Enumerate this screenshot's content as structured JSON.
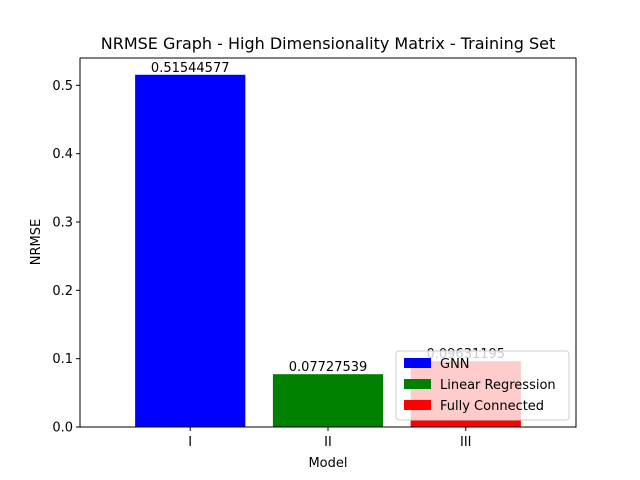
{
  "chart_data": {
    "type": "bar",
    "title": "NRMSE Graph - High Dimensionality Matrix - Training Set",
    "xlabel": "Model",
    "ylabel": "NRMSE",
    "categories": [
      "I",
      "II",
      "III"
    ],
    "values": [
      0.51544577,
      0.07727539,
      0.09631195
    ],
    "data_labels": [
      "0.51544577",
      "0.07727539",
      "0.09631195"
    ],
    "colors": [
      "#0000ff",
      "#008000",
      "#ff0000"
    ],
    "ylim": [
      0,
      0.54
    ],
    "yticks": [
      0.0,
      0.1,
      0.2,
      0.3,
      0.4,
      0.5
    ],
    "ytick_labels": [
      "0.0",
      "0.1",
      "0.2",
      "0.3",
      "0.4",
      "0.5"
    ],
    "grid": false,
    "legend": {
      "placement": "lower-right",
      "entries": [
        {
          "name": "GNN",
          "color": "#0000ff"
        },
        {
          "name": "Linear Regression",
          "color": "#008000"
        },
        {
          "name": "Fully Connected",
          "color": "#ff0000"
        }
      ]
    }
  }
}
